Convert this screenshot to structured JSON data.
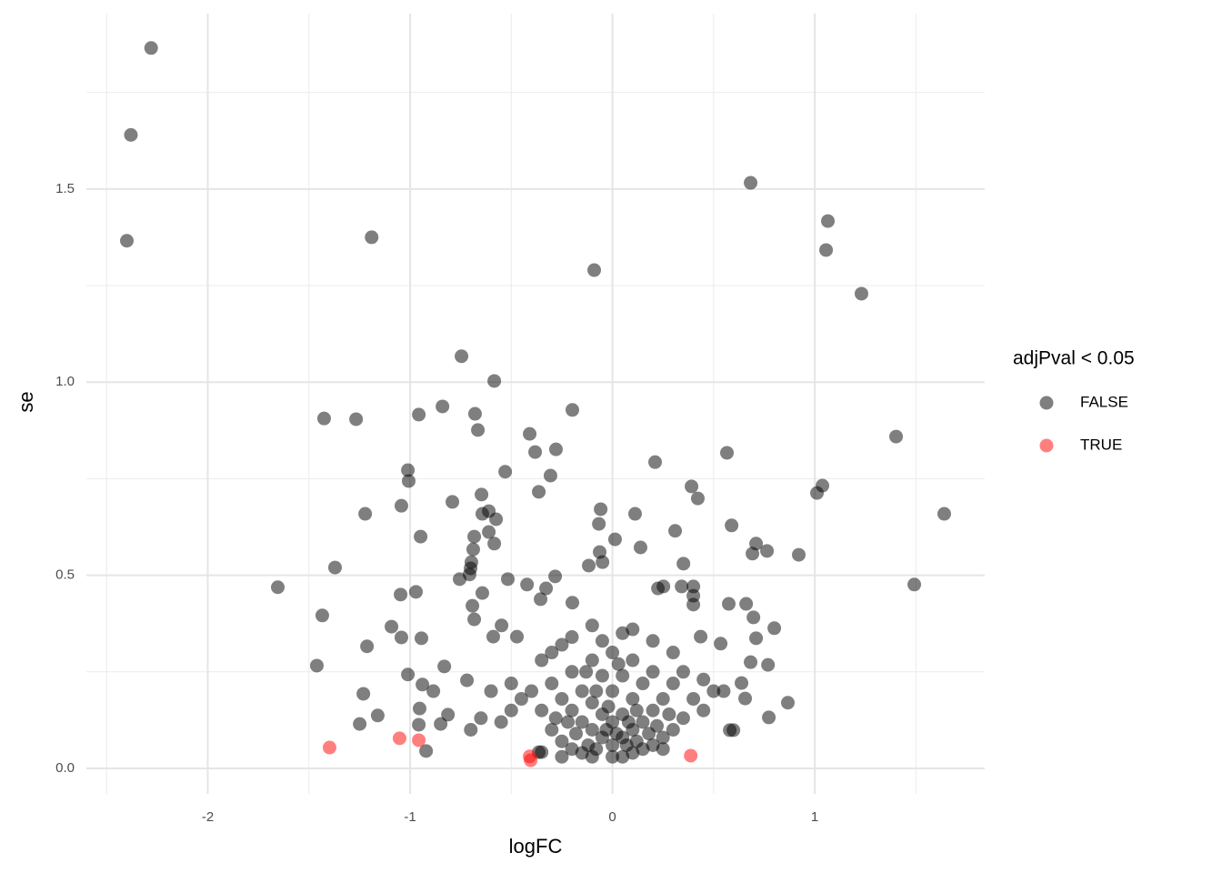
{
  "chart_data": {
    "type": "scatter",
    "x_label": "logFC",
    "y_label": "se",
    "legend_title": "adjPval < 0.05",
    "legend_position": "right",
    "xlim": [
      -2.6,
      1.84
    ],
    "ylim": [
      -0.066,
      1.954
    ],
    "xticks": [
      -2,
      -1,
      0,
      1
    ],
    "yticks": [
      {
        "value": 0,
        "label": "0.0"
      },
      {
        "value": 0.5,
        "label": "0.5"
      },
      {
        "value": 1,
        "label": "1.0"
      },
      {
        "value": 1.5,
        "label": "1.5"
      }
    ],
    "x_minor_grid": [
      -2.5,
      -1.5,
      -0.5,
      0.5,
      1.5
    ],
    "y_minor_grid": [
      0.25,
      0.75,
      1.25,
      1.75
    ],
    "grid": true,
    "series": [
      {
        "name": "FALSE",
        "color": "#000000",
        "x": [
          -2.28,
          -2.38,
          -2.4,
          -1.19,
          0.683,
          1.065,
          1.056,
          1.231,
          -0.09,
          -0.746,
          -0.584,
          -1.425,
          -1.267,
          -0.957,
          -0.84,
          -0.679,
          -0.665,
          -0.409,
          -0.382,
          -0.279,
          -0.198,
          1.402,
          0.566,
          0.211,
          -1.011,
          -1.007,
          -0.53,
          -0.306,
          -0.364,
          0.391,
          0.422,
          1.011,
          1.038,
          1.64,
          -1.043,
          -0.791,
          -0.647,
          -1.222,
          -0.643,
          -0.611,
          -0.575,
          -0.058,
          0.112,
          0.31,
          -0.067,
          0.589,
          -0.611,
          -0.683,
          -0.948,
          -0.584,
          0.013,
          0.139,
          0.71,
          0.692,
          0.764,
          0.921,
          1.492,
          -1.371,
          -0.688,
          -0.697,
          -0.701,
          -0.706,
          -0.755,
          -0.063,
          -0.049,
          -0.117,
          -0.517,
          -0.422,
          -1.654,
          -1.047,
          -0.971,
          -0.283,
          -0.328,
          -0.355,
          -0.198,
          0.351,
          0.225,
          0.252,
          0.342,
          0.4,
          0.4,
          0.4,
          0.575,
          0.661,
          0.697,
          -1.434,
          -0.692,
          -0.683,
          -1.092,
          -1.043,
          -0.944,
          -0.643,
          -0.548,
          -0.472,
          0.8,
          0.71,
          0.535,
          0.436,
          -1.213,
          -0.589,
          -1.461,
          -1.011,
          -0.831,
          0.683,
          0.769,
          0.638,
          -0.939,
          -0.885,
          -1.231,
          -0.719,
          -0.953,
          -0.849,
          -0.813,
          -1.16,
          -1.249,
          -0.957,
          -0.921,
          0.773,
          0.867,
          0.58,
          0.598,
          0.656,
          -0.364,
          -0.35,
          -0.3,
          -0.25,
          -0.2,
          -0.15,
          -0.1,
          -0.05,
          0,
          0.05,
          0.1,
          0.15,
          0.2,
          0.25,
          0.3,
          -0.35,
          -0.3,
          -0.25,
          -0.2,
          -0.15,
          -0.1,
          0.1,
          0.15,
          0.2,
          0.25,
          0.3,
          0.35,
          -0.2,
          -0.15,
          -0.1,
          -0.05,
          0,
          0.05,
          0.1,
          0.15,
          0.2,
          -0.1,
          -0.05,
          0,
          0.05,
          0.1,
          0,
          -0.05,
          0.05,
          -0.12,
          -0.08,
          -0.03,
          0.02,
          0.07,
          0.12,
          -0.18,
          0.18,
          -0.4,
          -0.45,
          -0.5,
          -0.55,
          -0.5,
          0.4,
          0.45,
          0.5,
          0.35,
          0.3,
          -0.3,
          -0.25,
          -0.35,
          -0.6,
          -0.65,
          -0.7,
          0.55,
          0.45,
          -0.22,
          -0.02,
          0.08,
          0.22,
          -0.28,
          0.28,
          -0.08,
          0.12,
          -0.13,
          0.03,
          -0.1,
          0.1,
          0.2,
          -0.2,
          0.25,
          -0.25,
          0,
          0.05
        ],
        "values": [
          1.865,
          1.64,
          1.366,
          1.375,
          1.516,
          1.417,
          1.342,
          1.229,
          1.29,
          1.067,
          1.003,
          0.906,
          0.904,
          0.916,
          0.937,
          0.918,
          0.876,
          0.866,
          0.819,
          0.826,
          0.928,
          0.859,
          0.817,
          0.793,
          0.772,
          0.744,
          0.768,
          0.758,
          0.716,
          0.73,
          0.699,
          0.713,
          0.732,
          0.659,
          0.68,
          0.69,
          0.709,
          0.659,
          0.659,
          0.666,
          0.645,
          0.671,
          0.659,
          0.615,
          0.633,
          0.629,
          0.612,
          0.6,
          0.6,
          0.582,
          0.593,
          0.572,
          0.582,
          0.556,
          0.563,
          0.553,
          0.476,
          0.52,
          0.567,
          0.534,
          0.518,
          0.502,
          0.49,
          0.56,
          0.534,
          0.525,
          0.49,
          0.476,
          0.469,
          0.45,
          0.457,
          0.497,
          0.466,
          0.438,
          0.429,
          0.53,
          0.466,
          0.471,
          0.471,
          0.471,
          0.447,
          0.424,
          0.426,
          0.426,
          0.391,
          0.396,
          0.421,
          0.386,
          0.367,
          0.339,
          0.337,
          0.454,
          0.37,
          0.341,
          0.363,
          0.337,
          0.323,
          0.341,
          0.316,
          0.341,
          0.266,
          0.243,
          0.264,
          0.275,
          0.268,
          0.221,
          0.217,
          0.2,
          0.193,
          0.228,
          0.155,
          0.115,
          0.139,
          0.137,
          0.115,
          0.113,
          0.045,
          0.132,
          0.17,
          0.099,
          0.099,
          0.181,
          0.042,
          0.042,
          0.22,
          0.18,
          0.15,
          0.12,
          0.1,
          0.08,
          0.06,
          0.08,
          0.1,
          0.12,
          0.15,
          0.18,
          0.22,
          0.15,
          0.1,
          0.07,
          0.05,
          0.04,
          0.03,
          0.04,
          0.05,
          0.06,
          0.08,
          0.1,
          0.13,
          0.25,
          0.2,
          0.17,
          0.14,
          0.12,
          0.14,
          0.18,
          0.22,
          0.25,
          0.28,
          0.24,
          0.2,
          0.24,
          0.28,
          0.3,
          0.33,
          0.35,
          0.06,
          0.05,
          0.1,
          0.09,
          0.06,
          0.07,
          0.09,
          0.09,
          0.2,
          0.18,
          0.15,
          0.12,
          0.22,
          0.18,
          0.15,
          0.2,
          0.25,
          0.3,
          0.3,
          0.32,
          0.28,
          0.2,
          0.13,
          0.1,
          0.2,
          0.23,
          0.12,
          0.16,
          0.12,
          0.11,
          0.13,
          0.14,
          0.2,
          0.15,
          0.25,
          0.27,
          0.37,
          0.36,
          0.33,
          0.34,
          0.05,
          0.03,
          0.03,
          0.03
        ]
      },
      {
        "name": "TRUE",
        "color": "#ff0000",
        "x": [
          -1.398,
          -1.052,
          -0.957,
          -0.409,
          -0.404,
          0.387
        ],
        "values": [
          0.054,
          0.078,
          0.073,
          0.031,
          0.021,
          0.033
        ]
      }
    ]
  }
}
